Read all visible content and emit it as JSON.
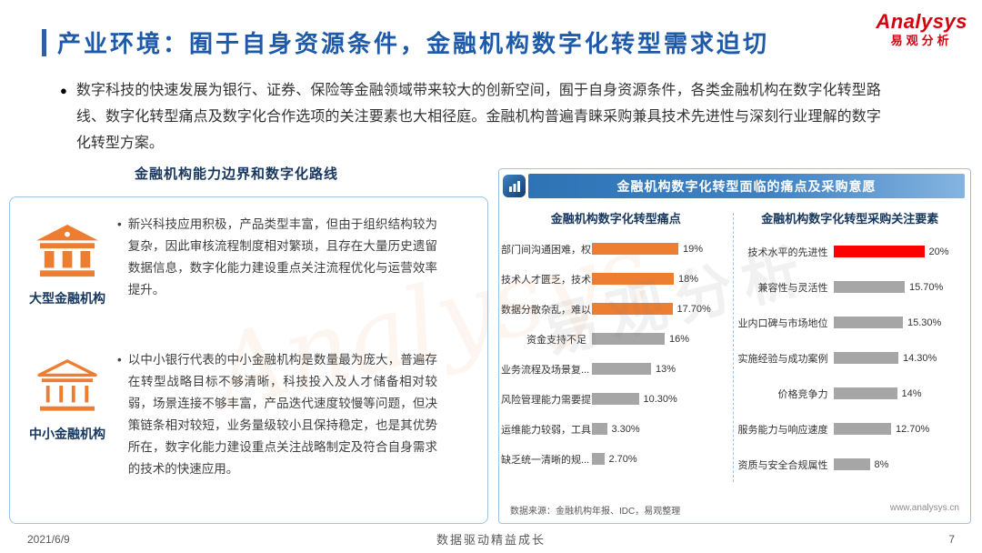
{
  "header": {
    "title": "产业环境：囿于自身资源条件，金融机构数字化转型需求迫切",
    "logo": {
      "en": "Analysys",
      "cn": "易观分析"
    }
  },
  "intro": {
    "bullet": "●",
    "text": "数字科技的快速发展为银行、证券、保险等金融领域带来较大的创新空间，囿于自身资源条件，各类金融机构在数字化转型路线、数字化转型痛点及数字化合作选项的关注要素也大相径庭。金融机构普遍青睐采购兼具技术先进性与深刻行业理解的数字化转型方案。"
  },
  "left_section": {
    "heading": "金融机构能力边界和数字化路线",
    "items": [
      {
        "bullet": "•",
        "label": "大型金融机构",
        "icon": "bank-large-icon",
        "text": "新兴科技应用积极，产品类型丰富，但由于组织结构较为复杂，因此审核流程制度相对繁琐，且存在大量历史遗留数据信息，数字化能力建设重点关注流程优化与运营效率提升。"
      },
      {
        "bullet": "•",
        "label": "中小金融机构",
        "icon": "bank-medium-icon",
        "text": "以中小银行代表的中小金融机构是数量最为庞大，普遍存在转型战略目标不够清晰，科技投入及人才储备相对较弱，场景连接不够丰富，产品迭代速度较慢等问题，但决策链条相对较短，业务量级较小且保持稳定，也是其优势所在，数字化能力建设重点关注战略制定及符合自身需求的技术的快速应用。"
      }
    ]
  },
  "right_section": {
    "header": "金融机构数字化转型面临的痛点及采购意愿",
    "source": "数据来源：金融机构年报、IDC，易观整理",
    "website": "www.analysys.cn"
  },
  "chart_data": [
    {
      "type": "bar",
      "orientation": "horizontal",
      "title": "金融机构数字化转型痛点",
      "categories": [
        "部门间沟通困难，权...",
        "技术人才匮乏，技术...",
        "数据分散杂乱，难以...",
        "资金支持不足",
        "业务流程及场景复...",
        "风险管理能力需要提高",
        "运维能力较弱，工具...",
        "缺乏统一清晰的规..."
      ],
      "values": [
        19,
        18,
        17.7,
        16,
        13,
        10.3,
        3.3,
        2.7
      ],
      "labels": [
        "19%",
        "18%",
        "17.70%",
        "16%",
        "13%",
        "10.30%",
        "3.30%",
        "2.70%"
      ],
      "colors": [
        "#ED7D31",
        "#ED7D31",
        "#ED7D31",
        "#A6A6A6",
        "#A6A6A6",
        "#A6A6A6",
        "#A6A6A6",
        "#A6A6A6"
      ],
      "xlim": [
        0,
        20
      ],
      "grid": false,
      "value_labels_shown": true
    },
    {
      "type": "bar",
      "orientation": "horizontal",
      "title": "金融机构数字化转型采购关注要素",
      "categories": [
        "技术水平的先进性",
        "兼容性与灵活性",
        "业内口碑与市场地位",
        "实施经验与成功案例",
        "价格竞争力",
        "服务能力与响应速度",
        "资质与安全合规属性"
      ],
      "values": [
        20,
        15.7,
        15.3,
        14.3,
        14,
        12.7,
        8
      ],
      "labels": [
        "20%",
        "15.70%",
        "15.30%",
        "14.30%",
        "14%",
        "12.70%",
        "8%"
      ],
      "colors": [
        "#FF0000",
        "#A6A6A6",
        "#A6A6A6",
        "#A6A6A6",
        "#A6A6A6",
        "#A6A6A6",
        "#A6A6A6"
      ],
      "xlim": [
        0,
        20
      ],
      "grid": false,
      "value_labels_shown": true
    }
  ],
  "footer": {
    "date": "2021/6/9",
    "slogan": "数据驱动精益成长",
    "page": "7"
  },
  "watermark": {
    "en": "Analysys",
    "cn": "易观分析"
  },
  "colors": {
    "title_blue": "#1E5AA8",
    "navy": "#17375E",
    "orange": "#ED7D31",
    "red": "#FF0000",
    "gray_bar": "#A6A6A6",
    "panel_blue": "#2E74B5",
    "border_blue": "#9DC3E6",
    "logo_red": "#D7000F"
  }
}
